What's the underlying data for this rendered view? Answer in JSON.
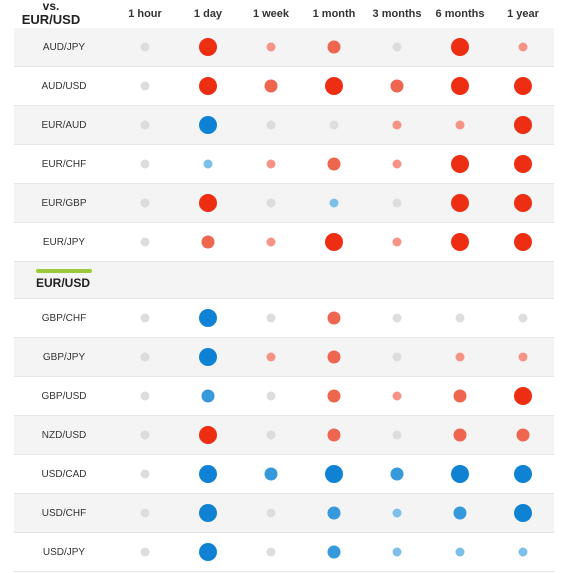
{
  "corner": {
    "vs": "vs.",
    "pair": "EUR/USD"
  },
  "columns": [
    "1 hour",
    "1 day",
    "1 week",
    "1 month",
    "3 months",
    "6 months",
    "1 year"
  ],
  "colors": {
    "gray": "#dddddd",
    "red_strong": "#ee2e12",
    "red_medium": "#ee6650",
    "red_light": "#f59387",
    "blue_strong": "#0f82d4",
    "blue_medium": "#3599dc",
    "blue_light": "#7cc0ea"
  },
  "base_pair_label": "EUR/USD",
  "rows": [
    {
      "pair": "AUD/JPY",
      "cells": [
        "n0",
        "r3",
        "r1",
        "r2",
        "n0",
        "r3",
        "r1"
      ]
    },
    {
      "pair": "AUD/USD",
      "cells": [
        "n0",
        "r3",
        "r2",
        "r3",
        "r2",
        "r3",
        "r3"
      ]
    },
    {
      "pair": "EUR/AUD",
      "cells": [
        "n0",
        "b3",
        "n0",
        "n0",
        "r1",
        "r1",
        "r3"
      ]
    },
    {
      "pair": "EUR/CHF",
      "cells": [
        "n0",
        "b1",
        "r1",
        "r2",
        "r1",
        "r3",
        "r3"
      ]
    },
    {
      "pair": "EUR/GBP",
      "cells": [
        "n0",
        "r3",
        "n0",
        "b1",
        "n0",
        "r3",
        "r3"
      ]
    },
    {
      "pair": "EUR/JPY",
      "cells": [
        "n0",
        "r2",
        "r1",
        "r3",
        "r1",
        "r3",
        "r3"
      ]
    },
    {
      "pair": "GBP/CHF",
      "cells": [
        "n0",
        "b3",
        "n0",
        "r2",
        "n0",
        "n0",
        "n0"
      ]
    },
    {
      "pair": "GBP/JPY",
      "cells": [
        "n0",
        "b3",
        "r1",
        "r2",
        "n0",
        "r1",
        "r1"
      ]
    },
    {
      "pair": "GBP/USD",
      "cells": [
        "n0",
        "b2",
        "n0",
        "r2",
        "r1",
        "r2",
        "r3"
      ]
    },
    {
      "pair": "NZD/USD",
      "cells": [
        "n0",
        "r3",
        "n0",
        "r2",
        "n0",
        "r2",
        "r2"
      ]
    },
    {
      "pair": "USD/CAD",
      "cells": [
        "n0",
        "b3",
        "b2",
        "b3",
        "b2",
        "b3",
        "b3"
      ]
    },
    {
      "pair": "USD/CHF",
      "cells": [
        "n0",
        "b3",
        "n0",
        "b2",
        "b1",
        "b2",
        "b3"
      ]
    },
    {
      "pair": "USD/JPY",
      "cells": [
        "n0",
        "b3",
        "n0",
        "b2",
        "b1",
        "b1",
        "b1"
      ]
    }
  ]
}
